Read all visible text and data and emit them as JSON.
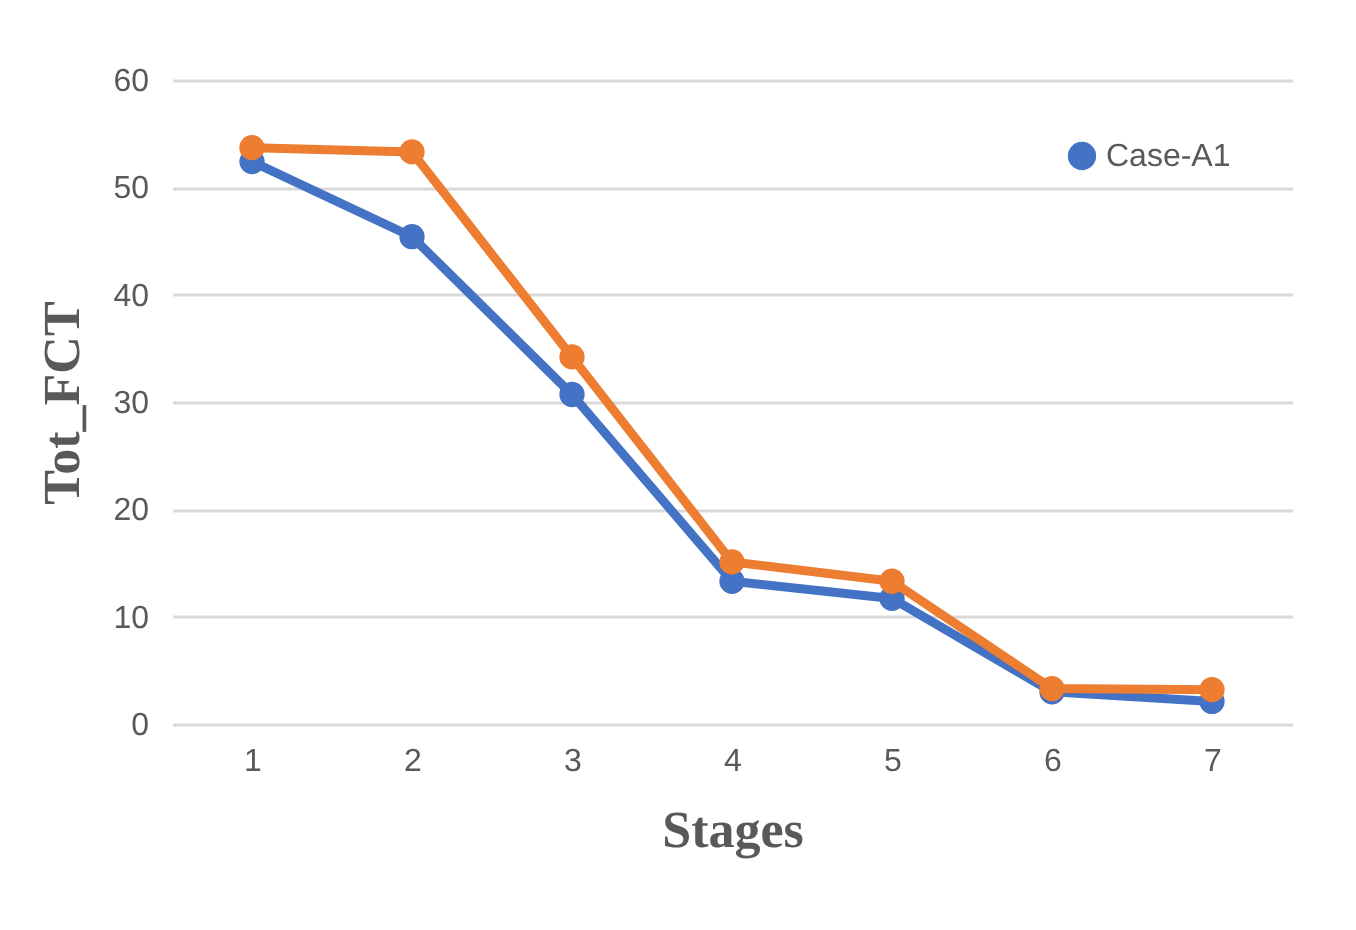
{
  "chart_data": {
    "type": "line",
    "xlabel": "Stages",
    "ylabel": "Tot_FCT",
    "categories": [
      "1",
      "2",
      "3",
      "4",
      "5",
      "6",
      "7"
    ],
    "series": [
      {
        "name": "Case-A1",
        "color": "#4472c4",
        "values": [
          52.4,
          45.4,
          30.7,
          13.3,
          11.7,
          3.0,
          2.1
        ]
      },
      {
        "color": "#ed7d31",
        "values": [
          53.7,
          53.3,
          34.2,
          15.1,
          13.3,
          3.3,
          3.2
        ]
      }
    ],
    "ylim": [
      0,
      60
    ],
    "yticks": [
      0,
      10,
      20,
      30,
      40,
      50,
      60
    ],
    "grid": "y",
    "legend": "top right",
    "marker": "circle",
    "line_style": "solid"
  }
}
